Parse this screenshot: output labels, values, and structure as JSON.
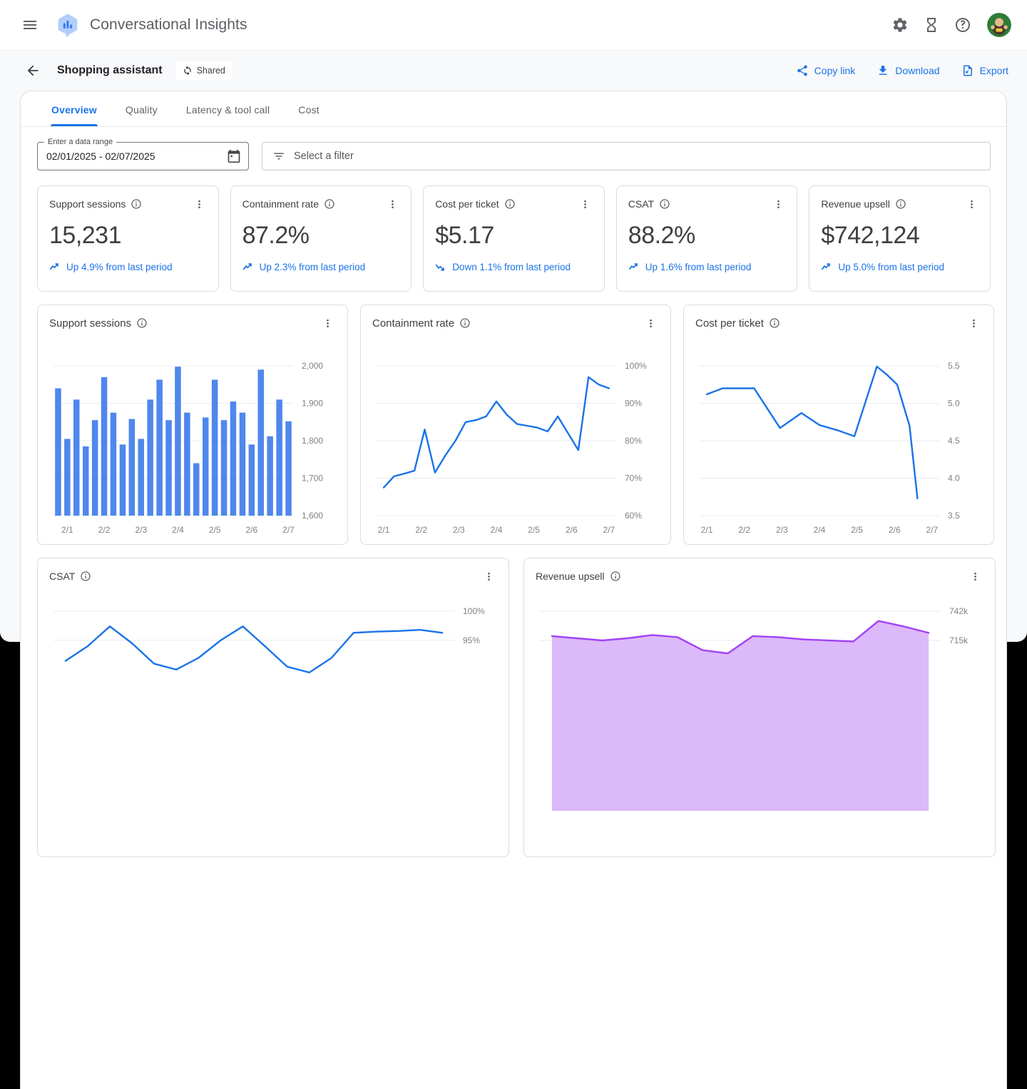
{
  "header": {
    "app_title": "Conversational Insights",
    "icons": {
      "menu": "hamburger-menu",
      "logo": "chat-bubble-chart-logo",
      "settings": "gear-icon",
      "pending": "hourglass-icon",
      "help": "question-circle-icon",
      "avatar": "user-avatar"
    }
  },
  "toolbar": {
    "page_title": "Shopping assistant",
    "shared_badge": "Shared",
    "copy_link_label": "Copy link",
    "download_label": "Download",
    "export_label": "Export"
  },
  "tabs": [
    {
      "label": "Overview",
      "active": true
    },
    {
      "label": "Quality",
      "active": false
    },
    {
      "label": "Latency & tool call",
      "active": false
    },
    {
      "label": "Cost",
      "active": false
    }
  ],
  "filters": {
    "date_label": "Enter a data range",
    "date_value": "02/01/2025 - 02/07/2025",
    "filter_placeholder": "Select a filter"
  },
  "kpis": [
    {
      "title": "Support sessions",
      "value": "15,231",
      "trend": "Up 4.9% from last period",
      "direction": "up"
    },
    {
      "title": "Containment rate",
      "value": "87.2%",
      "trend": "Up 2.3% from last period",
      "direction": "up"
    },
    {
      "title": "Cost per ticket",
      "value": "$5.17",
      "trend": "Down 1.1% from last period",
      "direction": "down"
    },
    {
      "title": "CSAT",
      "value": "88.2%",
      "trend": "Up 1.6% from last period",
      "direction": "up"
    },
    {
      "title": "Revenue upsell",
      "value": "$742,124",
      "trend": "Up 5.0% from last period",
      "direction": "up"
    }
  ],
  "colors": {
    "accent_blue": "#1a73e8",
    "bar_blue": "#4f87ed",
    "line_blue": "#1a73e8",
    "purple_line": "#a142f4",
    "purple_fill": "#dcb9fa",
    "grid": "#e9ebee",
    "axis_text": "#7d8287"
  },
  "chart_data": [
    {
      "title": "Support sessions",
      "type": "bar",
      "categories": [
        "2/1",
        "2/2",
        "2/3",
        "2/4",
        "2/5",
        "2/6",
        "2/7"
      ],
      "values": [
        1940,
        1805,
        1910,
        1785,
        1855,
        1970,
        1875,
        1790,
        1858,
        1805,
        1910,
        1963,
        1855,
        1998,
        1875,
        1740,
        1862,
        1963,
        1855,
        1905,
        1875,
        1790,
        1990,
        1812,
        1910,
        1852
      ],
      "ylim": [
        1600,
        2000
      ],
      "yticks": [
        {
          "v": 1600,
          "label": "1,600"
        },
        {
          "v": 1700,
          "label": "1,700"
        },
        {
          "v": 1800,
          "label": "1,800"
        },
        {
          "v": 1900,
          "label": "1,900"
        },
        {
          "v": 2000,
          "label": "2,000"
        }
      ],
      "color": "#4f87ed",
      "grid": true,
      "legend": "none",
      "xlabel": "",
      "ylabel": ""
    },
    {
      "title": "Containment rate",
      "type": "line",
      "categories": [
        "2/1",
        "2/2",
        "2/3",
        "2/4",
        "2/5",
        "2/6",
        "2/7"
      ],
      "values": [
        67.5,
        70.5,
        71.2,
        72,
        83,
        71.5,
        76,
        80,
        85,
        85.5,
        86.5,
        90.5,
        87,
        84.5,
        84,
        83.5,
        82.5,
        86.5,
        82,
        77.5,
        97,
        95,
        94
      ],
      "ylim": [
        60,
        100
      ],
      "yticks": [
        {
          "v": 60,
          "label": "60%"
        },
        {
          "v": 70,
          "label": "70%"
        },
        {
          "v": 80,
          "label": "80%"
        },
        {
          "v": 90,
          "label": "90%"
        },
        {
          "v": 100,
          "label": "100%"
        }
      ],
      "color": "#1a73e8",
      "grid": true,
      "legend": "none",
      "xlabel": "",
      "ylabel": ""
    },
    {
      "title": "Cost per ticket",
      "type": "line",
      "categories": [
        "2/1",
        "2/2",
        "2/3",
        "2/4",
        "2/5",
        "2/6",
        "2/7"
      ],
      "points": [
        [
          0.0,
          5.12
        ],
        [
          0.07,
          5.2
        ],
        [
          0.21,
          5.2
        ],
        [
          0.325,
          4.67
        ],
        [
          0.42,
          4.87
        ],
        [
          0.5,
          4.71
        ],
        [
          0.58,
          4.64
        ],
        [
          0.655,
          4.56
        ],
        [
          0.755,
          5.49
        ],
        [
          0.8,
          5.38
        ],
        [
          0.845,
          5.25
        ],
        [
          0.9,
          4.7
        ],
        [
          0.935,
          3.73
        ]
      ],
      "ylim": [
        3.5,
        5.5
      ],
      "yticks": [
        {
          "v": 3.5,
          "label": "3.5"
        },
        {
          "v": 4,
          "label": "4.0"
        },
        {
          "v": 4.5,
          "label": "4.5"
        },
        {
          "v": 5,
          "label": "5.0"
        },
        {
          "v": 5.5,
          "label": "5.5"
        }
      ],
      "color": "#1a73e8",
      "grid": true,
      "legend": "none",
      "xlabel": "",
      "ylabel": ""
    },
    {
      "title": "CSAT",
      "type": "line",
      "categories": [],
      "values": [
        91.5,
        94,
        97.4,
        94.5,
        91,
        90,
        92,
        95,
        97.4,
        94,
        90.5,
        89.5,
        92,
        96.3,
        96.5,
        96.6,
        96.8,
        96.3
      ],
      "ylim": [
        70.2,
        100
      ],
      "yticks": [
        {
          "v": 100,
          "label": "100%"
        },
        {
          "v": 95,
          "label": "95%"
        }
      ],
      "color": "#1a73e8",
      "grid": true,
      "legend": "none",
      "xlabel": "",
      "ylabel": "",
      "note_visible_portion": "card cut off by viewport bottom"
    },
    {
      "title": "Revenue upsell",
      "type": "area",
      "categories": [],
      "values": [
        719,
        717,
        715,
        717,
        720,
        718,
        706,
        703,
        719,
        718,
        716,
        715,
        714,
        733,
        728,
        722
      ],
      "ylim": [
        581.3,
        742
      ],
      "yticks": [
        {
          "v": 742,
          "label": "742k"
        },
        {
          "v": 715,
          "label": "715k"
        }
      ],
      "color": "#a142f4",
      "fill": "#dcb9fa",
      "grid": true,
      "legend": "none",
      "xlabel": "",
      "ylabel": "",
      "note_visible_portion": "card cut off by viewport bottom"
    }
  ]
}
